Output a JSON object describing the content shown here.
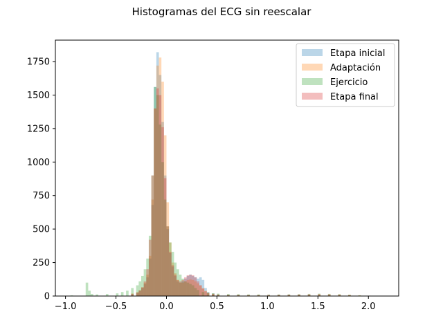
{
  "chart_data": {
    "type": "bar",
    "subtype": "overlapping-histogram",
    "title": "Histogramas del ECG sin reescalar",
    "xlabel": "",
    "ylabel": "",
    "xlim": [
      -1.1,
      2.3
    ],
    "ylim": [
      0,
      1910
    ],
    "x_ticks": [
      -1.0,
      -0.5,
      0.0,
      0.5,
      1.0,
      1.5,
      2.0
    ],
    "x_tick_labels": [
      "−1.0",
      "−0.5",
      "0.0",
      "0.5",
      "1.0",
      "1.5",
      "2.0"
    ],
    "y_ticks": [
      0,
      250,
      500,
      750,
      1000,
      1250,
      1500,
      1750
    ],
    "y_tick_labels": [
      "0",
      "250",
      "500",
      "750",
      "1000",
      "1250",
      "1500",
      "1750"
    ],
    "grid": false,
    "legend_position": "top-right",
    "bin_width": 0.025,
    "series": [
      {
        "name": "Etapa inicial",
        "color": "#1f77b4",
        "opacity": 0.3,
        "bins": [
          [
            -0.35,
            15
          ],
          [
            -0.3,
            25
          ],
          [
            -0.275,
            40
          ],
          [
            -0.25,
            60
          ],
          [
            -0.225,
            90
          ],
          [
            -0.2,
            140
          ],
          [
            -0.175,
            280
          ],
          [
            -0.15,
            680
          ],
          [
            -0.125,
            1560
          ],
          [
            -0.1,
            1820
          ],
          [
            -0.075,
            1650
          ],
          [
            -0.05,
            1300
          ],
          [
            -0.025,
            900
          ],
          [
            0.0,
            500
          ],
          [
            0.025,
            320
          ],
          [
            0.05,
            220
          ],
          [
            0.075,
            150
          ],
          [
            0.1,
            110
          ],
          [
            0.125,
            100
          ],
          [
            0.15,
            110
          ],
          [
            0.175,
            130
          ],
          [
            0.2,
            150
          ],
          [
            0.225,
            160
          ],
          [
            0.25,
            150
          ],
          [
            0.275,
            140
          ],
          [
            0.3,
            130
          ],
          [
            0.325,
            140
          ],
          [
            0.35,
            120
          ],
          [
            0.375,
            60
          ],
          [
            0.4,
            30
          ],
          [
            0.45,
            20
          ],
          [
            0.5,
            12
          ],
          [
            0.6,
            10
          ],
          [
            0.7,
            8
          ],
          [
            0.8,
            8
          ],
          [
            0.9,
            7
          ],
          [
            1.0,
            7
          ],
          [
            1.1,
            8
          ],
          [
            1.2,
            8
          ],
          [
            1.3,
            9
          ],
          [
            1.4,
            10
          ],
          [
            1.5,
            10
          ],
          [
            1.6,
            9
          ],
          [
            1.7,
            8
          ],
          [
            1.8,
            5
          ]
        ]
      },
      {
        "name": "Adaptación",
        "color": "#ff7f0e",
        "opacity": 0.3,
        "bins": [
          [
            -0.35,
            20
          ],
          [
            -0.3,
            30
          ],
          [
            -0.275,
            45
          ],
          [
            -0.25,
            65
          ],
          [
            -0.225,
            100
          ],
          [
            -0.2,
            160
          ],
          [
            -0.175,
            300
          ],
          [
            -0.15,
            720
          ],
          [
            -0.125,
            1400
          ],
          [
            -0.1,
            1720
          ],
          [
            -0.075,
            1780
          ],
          [
            -0.05,
            1600
          ],
          [
            -0.025,
            1200
          ],
          [
            0.0,
            700
          ],
          [
            0.025,
            400
          ],
          [
            0.05,
            250
          ],
          [
            0.075,
            170
          ],
          [
            0.1,
            120
          ],
          [
            0.125,
            100
          ],
          [
            0.15,
            100
          ],
          [
            0.175,
            110
          ],
          [
            0.2,
            120
          ],
          [
            0.225,
            125
          ],
          [
            0.25,
            120
          ],
          [
            0.275,
            110
          ],
          [
            0.3,
            95
          ],
          [
            0.325,
            80
          ],
          [
            0.35,
            60
          ],
          [
            0.375,
            40
          ],
          [
            0.4,
            25
          ],
          [
            0.45,
            18
          ],
          [
            0.5,
            12
          ],
          [
            0.6,
            10
          ],
          [
            0.7,
            10
          ],
          [
            0.8,
            9
          ],
          [
            0.9,
            9
          ],
          [
            1.0,
            8
          ],
          [
            1.1,
            9
          ],
          [
            1.2,
            10
          ],
          [
            1.3,
            11
          ],
          [
            1.4,
            12
          ],
          [
            1.5,
            14
          ],
          [
            1.6,
            13
          ],
          [
            1.7,
            12
          ],
          [
            1.8,
            10
          ],
          [
            1.9,
            6
          ],
          [
            2.0,
            3
          ]
        ]
      },
      {
        "name": "Ejercicio",
        "color": "#2ca02c",
        "opacity": 0.3,
        "bins": [
          [
            -0.95,
            5
          ],
          [
            -0.8,
            100
          ],
          [
            -0.775,
            40
          ],
          [
            -0.75,
            15
          ],
          [
            -0.7,
            12
          ],
          [
            -0.6,
            15
          ],
          [
            -0.5,
            20
          ],
          [
            -0.45,
            30
          ],
          [
            -0.4,
            40
          ],
          [
            -0.35,
            60
          ],
          [
            -0.3,
            80
          ],
          [
            -0.275,
            110
          ],
          [
            -0.25,
            150
          ],
          [
            -0.225,
            200
          ],
          [
            -0.2,
            280
          ],
          [
            -0.175,
            450
          ],
          [
            -0.15,
            900
          ],
          [
            -0.125,
            1560
          ],
          [
            -0.1,
            1500
          ],
          [
            -0.075,
            1280
          ],
          [
            -0.05,
            1000
          ],
          [
            -0.025,
            720
          ],
          [
            0.0,
            520
          ],
          [
            0.025,
            400
          ],
          [
            0.05,
            330
          ],
          [
            0.075,
            250
          ],
          [
            0.1,
            200
          ],
          [
            0.125,
            160
          ],
          [
            0.15,
            130
          ],
          [
            0.175,
            110
          ],
          [
            0.2,
            100
          ],
          [
            0.225,
            90
          ],
          [
            0.25,
            80
          ],
          [
            0.275,
            60
          ],
          [
            0.3,
            45
          ],
          [
            0.35,
            30
          ],
          [
            0.4,
            25
          ],
          [
            0.45,
            20
          ],
          [
            0.5,
            18
          ],
          [
            0.6,
            15
          ],
          [
            0.7,
            14
          ],
          [
            0.8,
            12
          ],
          [
            0.9,
            12
          ],
          [
            1.0,
            11
          ],
          [
            1.1,
            12
          ],
          [
            1.2,
            13
          ],
          [
            1.3,
            14
          ],
          [
            1.4,
            16
          ],
          [
            1.5,
            18
          ],
          [
            1.6,
            16
          ],
          [
            1.7,
            14
          ],
          [
            1.8,
            10
          ],
          [
            1.9,
            5
          ]
        ]
      },
      {
        "name": "Etapa final",
        "color": "#d62728",
        "opacity": 0.3,
        "bins": [
          [
            -0.35,
            15
          ],
          [
            -0.3,
            25
          ],
          [
            -0.275,
            40
          ],
          [
            -0.25,
            65
          ],
          [
            -0.225,
            110
          ],
          [
            -0.2,
            200
          ],
          [
            -0.175,
            420
          ],
          [
            -0.15,
            900
          ],
          [
            -0.125,
            1400
          ],
          [
            -0.1,
            1550
          ],
          [
            -0.075,
            1500
          ],
          [
            -0.05,
            1260
          ],
          [
            -0.025,
            880
          ],
          [
            0.0,
            520
          ],
          [
            0.025,
            330
          ],
          [
            0.05,
            230
          ],
          [
            0.075,
            160
          ],
          [
            0.1,
            120
          ],
          [
            0.125,
            110
          ],
          [
            0.15,
            120
          ],
          [
            0.175,
            140
          ],
          [
            0.2,
            155
          ],
          [
            0.225,
            160
          ],
          [
            0.25,
            155
          ],
          [
            0.275,
            140
          ],
          [
            0.3,
            110
          ],
          [
            0.325,
            80
          ],
          [
            0.35,
            55
          ],
          [
            0.375,
            35
          ],
          [
            0.4,
            22
          ],
          [
            0.45,
            15
          ],
          [
            0.5,
            10
          ],
          [
            0.6,
            8
          ],
          [
            0.7,
            8
          ],
          [
            0.8,
            7
          ],
          [
            0.9,
            7
          ],
          [
            1.0,
            8
          ],
          [
            1.1,
            9
          ],
          [
            1.2,
            10
          ],
          [
            1.3,
            11
          ],
          [
            1.4,
            12
          ],
          [
            1.5,
            13
          ],
          [
            1.6,
            12
          ],
          [
            1.7,
            10
          ],
          [
            1.8,
            6
          ]
        ]
      }
    ]
  }
}
